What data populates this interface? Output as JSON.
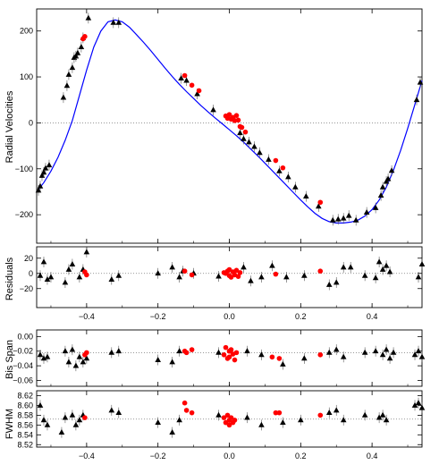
{
  "chart_data": [
    {
      "panel": "radial_velocities",
      "type": "scatter",
      "ylabel": "Radial Velocities",
      "xlim": [
        -0.54,
        0.54
      ],
      "ylim": [
        -262,
        248
      ],
      "x_ticks": [
        -0.4,
        -0.2,
        0.0,
        0.2,
        0.4
      ],
      "y_ticks": [
        -200,
        -100,
        0,
        100,
        200
      ],
      "y_tick_labels": [
        "−200",
        "−100",
        "0",
        "100",
        "200"
      ],
      "zero_line": true,
      "model": {
        "name": "",
        "color": "#0000ff",
        "x": [
          -0.54,
          -0.52,
          -0.5,
          -0.48,
          -0.46,
          -0.44,
          -0.42,
          -0.4,
          -0.38,
          -0.36,
          -0.34,
          -0.32,
          -0.3,
          -0.28,
          -0.26,
          -0.24,
          -0.22,
          -0.2,
          -0.18,
          -0.16,
          -0.14,
          -0.12,
          -0.1,
          -0.08,
          -0.06,
          -0.04,
          -0.02,
          0.0,
          0.02,
          0.04,
          0.06,
          0.08,
          0.1,
          0.12,
          0.14,
          0.16,
          0.18,
          0.2,
          0.22,
          0.24,
          0.26,
          0.28,
          0.3,
          0.32,
          0.34,
          0.36,
          0.38,
          0.4,
          0.42,
          0.44,
          0.46,
          0.48,
          0.5,
          0.52,
          0.54
        ],
        "y": [
          -150,
          -130,
          -105,
          -75,
          -38,
          5,
          60,
          115,
          165,
          200,
          220,
          224,
          220,
          208,
          192,
          175,
          157,
          138,
          119,
          101,
          84,
          68,
          53,
          38,
          24,
          11,
          -2,
          -15,
          -28,
          -42,
          -57,
          -72,
          -88,
          -104,
          -120,
          -136,
          -152,
          -168,
          -183,
          -197,
          -208,
          -215,
          -218,
          -218,
          -216,
          -212,
          -203,
          -189,
          -168,
          -140,
          -103,
          -60,
          -12,
          40,
          92
        ]
      },
      "series": [
        {
          "marker": "triangle",
          "color": "#000000",
          "x": [
            -0.535,
            -0.53,
            -0.525,
            -0.52,
            -0.515,
            -0.505,
            -0.465,
            -0.455,
            -0.45,
            -0.44,
            -0.435,
            -0.43,
            -0.425,
            -0.415,
            -0.41,
            -0.395,
            -0.325,
            -0.31,
            -0.135,
            -0.12,
            -0.09,
            -0.045,
            0.03,
            0.04,
            0.055,
            0.07,
            0.085,
            0.11,
            0.14,
            0.165,
            0.185,
            0.215,
            0.25,
            0.29,
            0.305,
            0.32,
            0.335,
            0.355,
            0.385,
            0.41,
            0.425,
            0.43,
            0.44,
            0.445,
            0.455,
            0.525,
            0.535
          ],
          "y": [
            -147,
            -138,
            -115,
            -108,
            -99,
            -92,
            55,
            81,
            105,
            120,
            142,
            145,
            152,
            165,
            185,
            228,
            218,
            218,
            97,
            92,
            63,
            28,
            -22,
            -35,
            -42,
            -52,
            -65,
            -80,
            -105,
            -118,
            -140,
            -160,
            -182,
            -212,
            -210,
            -208,
            -202,
            -212,
            -195,
            -185,
            -158,
            -140,
            -128,
            -122,
            -104,
            50,
            88
          ]
        },
        {
          "marker": "circle",
          "color": "#ff0000",
          "x": [
            -0.41,
            -0.405,
            -0.125,
            -0.105,
            -0.085,
            -0.01,
            -0.005,
            0.0,
            0.005,
            0.01,
            0.015,
            0.02,
            0.025,
            0.03,
            0.035,
            0.045,
            0.13,
            0.15,
            0.255
          ],
          "y": [
            183,
            188,
            103,
            82,
            70,
            15,
            10,
            18,
            8,
            12,
            5,
            16,
            6,
            -8,
            -10,
            -20,
            -82,
            -98,
            -173
          ]
        }
      ]
    },
    {
      "panel": "residuals",
      "type": "scatter",
      "ylabel": "Residuals",
      "xlim": [
        -0.54,
        0.54
      ],
      "ylim": [
        -45,
        35
      ],
      "y_ticks": [
        -20,
        0,
        20
      ],
      "y_tick_labels": [
        "−20",
        "0",
        "20"
      ],
      "zero_line": true,
      "series": [
        {
          "marker": "triangle",
          "color": "#000000",
          "x": [
            -0.53,
            -0.52,
            -0.51,
            -0.5,
            -0.46,
            -0.45,
            -0.44,
            -0.42,
            -0.41,
            -0.4,
            -0.33,
            -0.31,
            -0.2,
            -0.16,
            -0.14,
            -0.13,
            -0.1,
            -0.03,
            0.04,
            0.06,
            0.09,
            0.12,
            0.16,
            0.21,
            0.28,
            0.3,
            0.32,
            0.34,
            0.38,
            0.41,
            0.42,
            0.43,
            0.44,
            0.45,
            0.53,
            0.54
          ],
          "y": [
            -3,
            15,
            -8,
            -5,
            -12,
            5,
            12,
            -5,
            5,
            28,
            -8,
            -3,
            0,
            8,
            -5,
            3,
            0,
            -4,
            8,
            -10,
            -5,
            10,
            -5,
            -3,
            -15,
            -12,
            8,
            8,
            -3,
            -6,
            15,
            5,
            10,
            2,
            -5,
            12
          ]
        },
        {
          "marker": "circle",
          "color": "#ff0000",
          "x": [
            -0.405,
            -0.4,
            -0.125,
            -0.105,
            -0.01,
            -0.005,
            0.0,
            0.0,
            0.005,
            0.01,
            0.015,
            0.02,
            0.025,
            0.03,
            -0.015,
            0.13,
            0.255
          ],
          "y": [
            2,
            -2,
            3,
            -2,
            0,
            3,
            -3,
            5,
            -5,
            2,
            -2,
            4,
            -4,
            1,
            1,
            -1,
            3
          ]
        }
      ]
    },
    {
      "panel": "bis_span",
      "type": "scatter",
      "ylabel": "Bis Span",
      "xlim": [
        -0.54,
        0.54
      ],
      "ylim": [
        -0.068,
        0.009
      ],
      "y_ticks": [
        0.0,
        -0.02,
        -0.04,
        -0.06
      ],
      "y_tick_labels": [
        "0.00",
        "−0.02",
        "−0.04",
        "−0.06"
      ],
      "reference_line": -0.022,
      "series": [
        {
          "marker": "triangle",
          "color": "#000000",
          "x": [
            -0.53,
            -0.52,
            -0.51,
            -0.46,
            -0.45,
            -0.44,
            -0.43,
            -0.42,
            -0.41,
            -0.4,
            -0.33,
            -0.31,
            -0.2,
            -0.16,
            -0.14,
            -0.03,
            0.05,
            0.09,
            0.15,
            0.21,
            0.28,
            0.3,
            0.32,
            0.38,
            0.41,
            0.43,
            0.44,
            0.45,
            0.46,
            0.52,
            0.53,
            0.54
          ],
          "y": [
            -0.025,
            -0.03,
            -0.028,
            -0.02,
            -0.035,
            -0.018,
            -0.04,
            -0.028,
            -0.035,
            -0.03,
            -0.022,
            -0.02,
            -0.032,
            -0.035,
            -0.02,
            -0.022,
            -0.02,
            -0.025,
            -0.038,
            -0.03,
            -0.022,
            -0.018,
            -0.028,
            -0.022,
            -0.02,
            -0.025,
            -0.018,
            -0.03,
            -0.022,
            -0.025,
            -0.02,
            -0.028
          ]
        },
        {
          "marker": "circle",
          "color": "#ff0000",
          "x": [
            -0.405,
            -0.4,
            -0.125,
            -0.12,
            -0.105,
            -0.015,
            -0.01,
            -0.005,
            0.0,
            0.0,
            0.005,
            0.01,
            0.015,
            0.02,
            0.12,
            0.14,
            0.255
          ],
          "y": [
            -0.025,
            -0.022,
            -0.02,
            -0.022,
            -0.018,
            -0.025,
            -0.015,
            -0.03,
            -0.02,
            -0.028,
            -0.018,
            -0.024,
            -0.032,
            -0.022,
            -0.028,
            -0.03,
            -0.025
          ]
        }
      ]
    },
    {
      "panel": "fwhm",
      "type": "scatter",
      "ylabel": "FWHM",
      "xlabel": "",
      "xlim": [
        -0.54,
        0.54
      ],
      "ylim": [
        8.515,
        8.63
      ],
      "x_ticks": [
        -0.4,
        -0.2,
        0.0,
        0.2,
        0.4
      ],
      "x_tick_labels": [
        "−0.4",
        "−0.2",
        "0.0",
        "0.2",
        "0.4"
      ],
      "y_ticks": [
        8.62,
        8.6,
        8.58,
        8.56,
        8.54,
        8.52
      ],
      "y_tick_labels": [
        "8.62",
        "8.60",
        "8.58",
        "8.56",
        "8.54",
        "8.52"
      ],
      "reference_line": 8.572,
      "series": [
        {
          "marker": "triangle",
          "color": "#000000",
          "x": [
            -0.53,
            -0.52,
            -0.51,
            -0.47,
            -0.46,
            -0.44,
            -0.43,
            -0.42,
            -0.41,
            -0.33,
            -0.31,
            -0.2,
            -0.16,
            -0.14,
            -0.03,
            0.05,
            0.09,
            0.15,
            0.2,
            0.28,
            0.3,
            0.32,
            0.38,
            0.42,
            0.43,
            0.44,
            0.52,
            0.53,
            0.54
          ],
          "y": [
            8.6,
            8.57,
            8.56,
            8.545,
            8.575,
            8.58,
            8.56,
            8.57,
            8.58,
            8.59,
            8.585,
            8.565,
            8.545,
            8.57,
            8.58,
            8.575,
            8.56,
            8.565,
            8.57,
            8.585,
            8.59,
            8.57,
            8.58,
            8.575,
            8.58,
            8.57,
            8.6,
            8.605,
            8.595
          ]
        },
        {
          "marker": "circle",
          "color": "#ff0000",
          "x": [
            -0.405,
            -0.125,
            -0.12,
            -0.105,
            -0.015,
            -0.01,
            -0.005,
            0.0,
            0.0,
            0.005,
            0.01,
            0.015,
            0.13,
            0.14,
            0.255
          ],
          "y": [
            8.575,
            8.605,
            8.59,
            8.585,
            8.575,
            8.565,
            8.58,
            8.57,
            8.56,
            8.575,
            8.565,
            8.57,
            8.585,
            8.585,
            8.58
          ]
        }
      ]
    }
  ]
}
